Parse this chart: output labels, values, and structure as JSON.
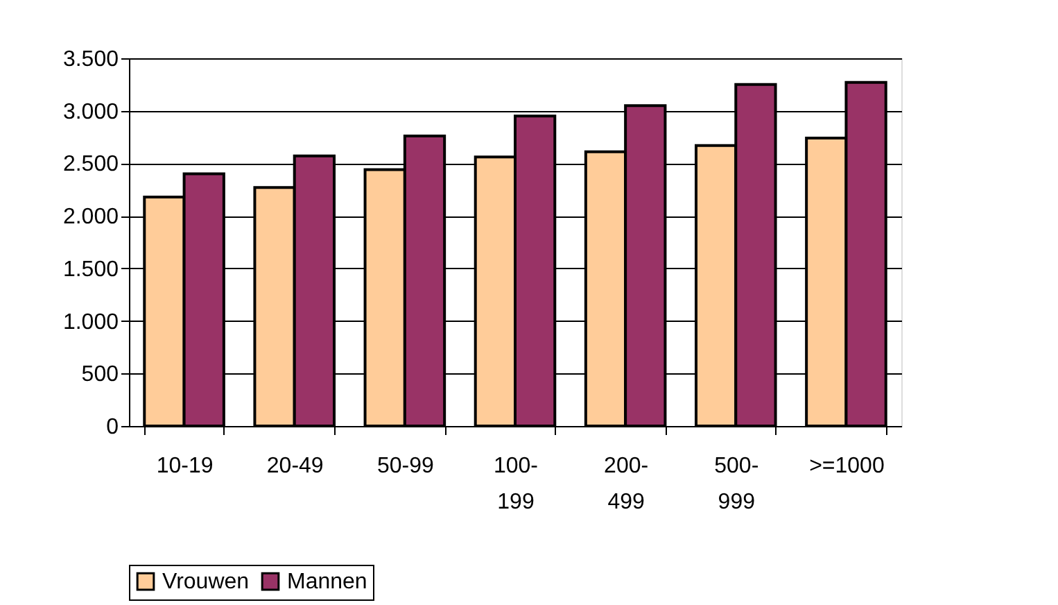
{
  "chart_data": {
    "type": "bar",
    "categories": [
      "10-19",
      "20-49",
      "50-99",
      "100-199",
      "200-499",
      "500-999",
      ">=1000"
    ],
    "series": [
      {
        "name": "Vrouwen",
        "color": "#ffcc99",
        "values": [
          2180,
          2270,
          2440,
          2560,
          2610,
          2670,
          2740
        ]
      },
      {
        "name": "Mannen",
        "color": "#993366",
        "values": [
          2400,
          2570,
          2760,
          2950,
          3050,
          3250,
          3270
        ]
      }
    ],
    "ylim": [
      0,
      3500
    ],
    "yticks": [
      {
        "value": 0,
        "label": "0"
      },
      {
        "value": 500,
        "label": "500"
      },
      {
        "value": 1000,
        "label": "1.000"
      },
      {
        "value": 1500,
        "label": "1.500"
      },
      {
        "value": 2000,
        "label": "2.000"
      },
      {
        "value": 2500,
        "label": "2.500"
      },
      {
        "value": 3000,
        "label": "3.000"
      },
      {
        "value": 3500,
        "label": "3.500"
      }
    ],
    "grid": "y",
    "legend": "bottom"
  }
}
